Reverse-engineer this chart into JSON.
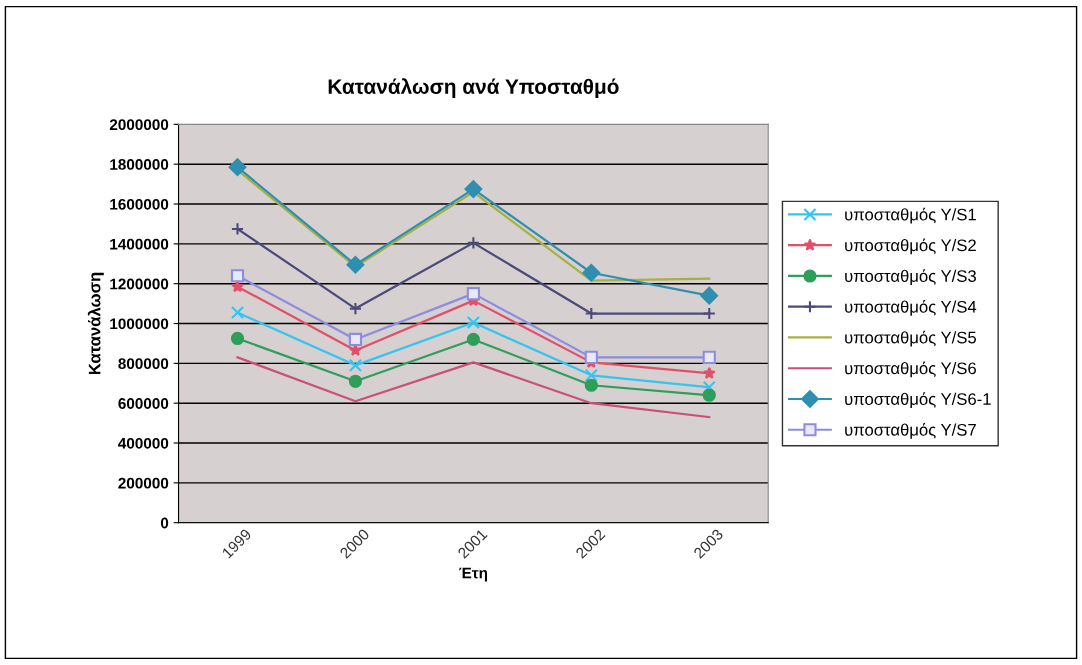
{
  "chart_data": {
    "type": "line",
    "title": "Κατανάλωση ανά Υποσταθμό",
    "xlabel": "Έτη",
    "ylabel": "Κατανάλωση",
    "categories": [
      "1999",
      "2000",
      "2001",
      "2002",
      "2003"
    ],
    "series": [
      {
        "name": "υποσταθμός Y/S1",
        "color": "#33c4f0",
        "marker": "cross",
        "values": [
          1055000,
          790000,
          1005000,
          740000,
          680000
        ]
      },
      {
        "name": "υποσταθμός Y/S2",
        "color": "#e0506a",
        "marker": "star",
        "values": [
          1185000,
          865000,
          1115000,
          805000,
          750000
        ]
      },
      {
        "name": "υποσταθμός Y/S3",
        "color": "#2e9e5a",
        "marker": "circle",
        "values": [
          925000,
          710000,
          920000,
          690000,
          640000
        ]
      },
      {
        "name": "υποσταθμός Y/S4",
        "color": "#4b4b7a",
        "marker": "plus",
        "values": [
          1475000,
          1075000,
          1405000,
          1050000,
          1050000
        ]
      },
      {
        "name": "υποσταθμός Y/S5",
        "color": "#a8b040",
        "marker": "none",
        "values": [
          1770000,
          1285000,
          1660000,
          1215000,
          1225000
        ]
      },
      {
        "name": "υποσταθμός Y/S6",
        "color": "#c8507a",
        "marker": "none",
        "values": [
          830000,
          610000,
          805000,
          600000,
          530000
        ]
      },
      {
        "name": "υποσταθμός Y/S6-1",
        "color": "#2e8fb0",
        "marker": "diamond",
        "values": [
          1785000,
          1295000,
          1675000,
          1255000,
          1140000
        ]
      },
      {
        "name": "υποσταθμός Y/S7",
        "color": "#8c8ce0",
        "marker": "square",
        "values": [
          1240000,
          920000,
          1150000,
          830000,
          830000
        ]
      }
    ],
    "ylim": [
      0,
      2000000
    ],
    "yticks": [
      0,
      200000,
      400000,
      600000,
      800000,
      1000000,
      1200000,
      1400000,
      1600000,
      1800000,
      2000000
    ],
    "grid": "y",
    "legend": "right"
  }
}
